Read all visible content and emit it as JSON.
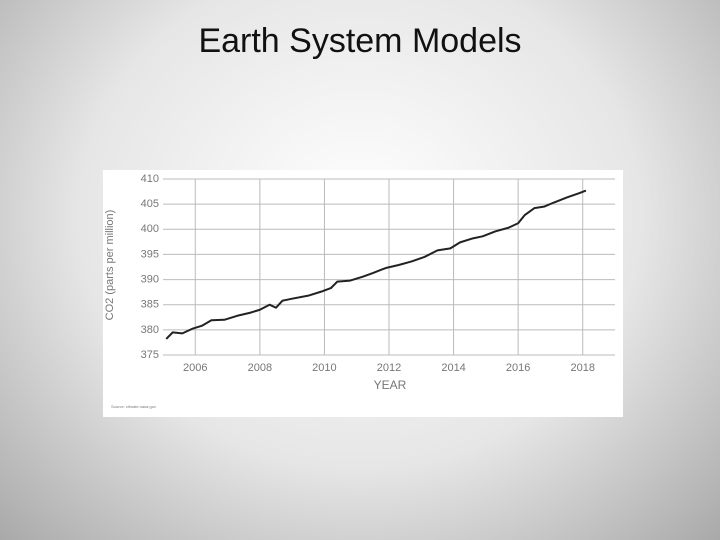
{
  "slide": {
    "title": "Earth System Models"
  },
  "chart_data": {
    "type": "line",
    "x_label": "YEAR",
    "y_label": "CO2 (parts per million)",
    "source": "Source: climate.nasa.gov",
    "x": [
      2005.1,
      2005.3,
      2005.6,
      2005.9,
      2006.2,
      2006.5,
      2006.9,
      2007.3,
      2007.7,
      2008.0,
      2008.3,
      2008.5,
      2008.7,
      2009.0,
      2009.5,
      2009.9,
      2010.2,
      2010.4,
      2010.8,
      2011.2,
      2011.5,
      2011.9,
      2012.3,
      2012.7,
      2013.1,
      2013.5,
      2013.9,
      2014.2,
      2014.6,
      2014.9,
      2015.3,
      2015.7,
      2016.0,
      2016.2,
      2016.5,
      2016.8,
      2017.1,
      2017.5,
      2017.9,
      2018.1
    ],
    "values": [
      378.2,
      379.5,
      379.3,
      380.2,
      380.8,
      381.9,
      382.0,
      382.8,
      383.4,
      384.0,
      385.0,
      384.4,
      385.8,
      386.2,
      386.8,
      387.6,
      388.3,
      389.6,
      389.8,
      390.6,
      391.3,
      392.3,
      392.9,
      393.6,
      394.5,
      395.8,
      396.2,
      397.4,
      398.2,
      398.6,
      399.6,
      400.3,
      401.2,
      402.8,
      404.2,
      404.5,
      405.3,
      406.3,
      407.2,
      407.7
    ],
    "color": "#222222",
    "xlim": [
      2005,
      2019
    ],
    "xticks": [
      2006,
      2008,
      2010,
      2012,
      2014,
      2016,
      2018
    ],
    "ylim": [
      375,
      410
    ],
    "yticks": [
      375,
      380,
      385,
      390,
      395,
      400,
      405,
      410
    ],
    "grid": true
  }
}
